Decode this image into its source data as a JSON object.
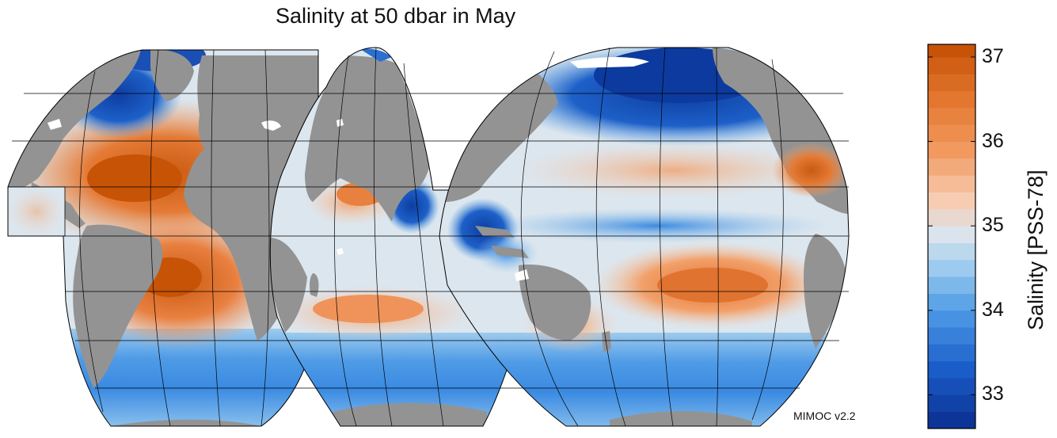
{
  "title": "Salinity at 50 dbar in May",
  "source": "MIMOC v2.2",
  "colors": {
    "land": "#939393",
    "ocean_mid": "#dce6ee",
    "salty": "#d65a12",
    "fresh": "#0d3b9c",
    "ice": "#ffffff",
    "grid": "#000000"
  },
  "colorbar": {
    "label": "Salinity [PSS-78]",
    "min": 32.6,
    "max": 37.15,
    "ticks": [
      33,
      34,
      35,
      36,
      37
    ],
    "stops": [
      {
        "value": 32.6,
        "color": "#0b2f8f"
      },
      {
        "value": 33.3,
        "color": "#1a5cc8"
      },
      {
        "value": 34.0,
        "color": "#4f9be6"
      },
      {
        "value": 34.5,
        "color": "#9ccbef"
      },
      {
        "value": 34.9,
        "color": "#dbe4ec"
      },
      {
        "value": 35.3,
        "color": "#f6cdb3"
      },
      {
        "value": 35.9,
        "color": "#f2995f"
      },
      {
        "value": 36.5,
        "color": "#e3772f"
      },
      {
        "value": 37.15,
        "color": "#c55005"
      }
    ]
  }
}
